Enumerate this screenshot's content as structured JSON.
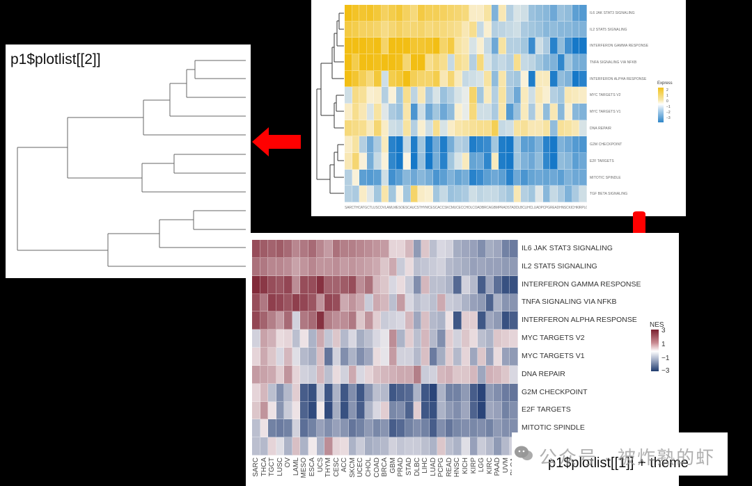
{
  "panels": {
    "dendrogram": {
      "title": "p1$plotlist[[2]]",
      "leaf_count": 12
    },
    "top_heatmap": {
      "legend_title": "Express",
      "legend_ticks": [
        "2",
        "1",
        "0",
        "−1",
        "−2",
        "−3"
      ],
      "col_label_text": "SARCTHCATGCTLUSCOVLAMLMESOESCAUCSTHYMCESCACCSKCMUCECCHOLCOADBRCAGBMPRADSTADDLBCLIHCLUADPCPGREADHNSCKICHKIRPLGGKIRCPAADUVMBLCA"
    },
    "bottom_heatmap": {
      "legend_title": "NES",
      "legend_ticks": [
        "3",
        "1",
        "−1",
        "−3"
      ]
    },
    "caption": "p1$plotlist[[1]] + theme",
    "watermark": "公众号 · 被炸熟的虾"
  },
  "arrows": [
    {
      "direction": "left",
      "color": "#ff0000"
    },
    {
      "direction": "down",
      "color": "#ff0000"
    }
  ],
  "chart_data": {
    "type": "heatmap",
    "title": "",
    "xlabel": "",
    "ylabel": "",
    "legend": {
      "title": "NES",
      "range": [
        -3,
        3
      ],
      "position": "right"
    },
    "rows": [
      "IL6 JAK STAT3 SIGNALING",
      "IL2 STAT5 SIGNALING",
      "INTERFERON GAMMA RESPONSE",
      "TNFA SIGNALING VIA NFKB",
      "INTERFERON ALPHA RESPONSE",
      "MYC TARGETS V2",
      "MYC TARGETS V1",
      "DNA REPAIR",
      "G2M CHECKPOINT",
      "E2F TARGETS",
      "MITOTIC SPINDLE",
      "TGF BETA SIGNALING"
    ],
    "columns": [
      "SARC",
      "THCA",
      "TGCT",
      "LUSC",
      "OV",
      "LAML",
      "MESO",
      "ESCA",
      "UCS",
      "THYM",
      "CESC",
      "ACC",
      "SKCM",
      "UCEC",
      "CHOL",
      "COAD",
      "BRCA",
      "GBM",
      "PRAD",
      "STAD",
      "DLBC",
      "LIHC",
      "LUAD",
      "PCPG",
      "READ",
      "HNSC",
      "KICH",
      "KIRP",
      "LGG",
      "KIRC",
      "PAAD",
      "UVM",
      "BLCA"
    ],
    "values": [
      [
        2.3,
        2.1,
        2.0,
        2.1,
        1.9,
        1.5,
        1.7,
        1.9,
        1.5,
        1.2,
        1.8,
        1.6,
        1.6,
        1.5,
        1.4,
        1.3,
        1.2,
        0.4,
        0.4,
        0.8,
        -1.4,
        0.6,
        -0.8,
        -0.4,
        -0.5,
        -1.1,
        -1.2,
        -1.3,
        -1.6,
        -1.1,
        -1.2,
        -1.8,
        -1.9
      ],
      [
        1.8,
        1.7,
        1.5,
        1.5,
        1.4,
        1.1,
        1.3,
        1.5,
        1.3,
        1.3,
        1.4,
        1.2,
        1.3,
        1.2,
        1.1,
        1.0,
        0.6,
        1.0,
        -0.6,
        0.3,
        -0.8,
        -0.7,
        -0.6,
        -0.5,
        -0.9,
        -1.0,
        -1.1,
        -1.3,
        -1.2,
        -1.3,
        -1.3,
        -1.4,
        -1.4
      ],
      [
        2.8,
        2.6,
        2.3,
        2.2,
        2.4,
        1.4,
        2.3,
        2.3,
        2.7,
        2.0,
        2.0,
        2.1,
        2.3,
        1.4,
        1.8,
        0.8,
        0.6,
        -0.4,
        0.3,
        -0.6,
        -1.6,
        0.8,
        -0.8,
        -0.8,
        -1.0,
        -2.2,
        -0.5,
        -0.9,
        -2.4,
        -1.2,
        -2.1,
        -2.6,
        -2.6
      ],
      [
        2.3,
        1.7,
        2.5,
        2.4,
        2.2,
        2.5,
        2.4,
        2.2,
        1.3,
        2.4,
        2.3,
        1.0,
        1.3,
        1.0,
        -0.6,
        1.0,
        0.8,
        -0.8,
        1.2,
        -0.4,
        -0.8,
        -0.6,
        -0.8,
        1.0,
        -0.6,
        -0.7,
        -1.0,
        -1.3,
        -1.4,
        -2.3,
        -1.0,
        -1.5,
        -1.5
      ],
      [
        2.4,
        2.0,
        1.6,
        1.2,
        1.9,
        -0.5,
        1.7,
        1.9,
        2.7,
        1.6,
        1.4,
        1.4,
        1.7,
        0.6,
        1.3,
        0.5,
        -0.6,
        -0.5,
        -0.4,
        0.8,
        -1.2,
        0.7,
        -0.9,
        -1.0,
        0.2,
        -2.5,
        0.5,
        0.5,
        -2.5,
        -1.2,
        -1.4,
        -2.6,
        -2.4
      ],
      [
        -0.5,
        1.1,
        0.9,
        0.3,
        0.4,
        -0.8,
        0.2,
        -1.0,
        1.0,
        -0.7,
        0.6,
        -0.9,
        -0.4,
        -1.1,
        -0.8,
        -0.4,
        -0.2,
        1.4,
        -1.0,
        0.5,
        -0.8,
        0.8,
        -0.9,
        -1.6,
        0.5,
        -0.5,
        0.6,
        0.3,
        -0.8,
        -1.0,
        0.6,
        0.5,
        0.4
      ],
      [
        0.4,
        1.0,
        0.6,
        -0.4,
        0.8,
        -0.3,
        -0.9,
        -1.1,
        0.7,
        -2.0,
        -0.5,
        -1.6,
        -1.0,
        -1.6,
        -1.2,
        0.3,
        -0.2,
        1.2,
        -0.5,
        -0.5,
        -0.9,
        0.7,
        -1.9,
        -1.1,
        0.5,
        -0.9,
        0.4,
        -1.2,
        0.6,
        -1.3,
        0.3,
        -1.3,
        -1.4
      ],
      [
        1.2,
        1.1,
        1.0,
        0.5,
        1.3,
        0.4,
        -0.5,
        -0.6,
        0.8,
        -0.8,
        0.3,
        -0.5,
        1.0,
        -0.4,
        0.4,
        0.7,
        0.8,
        0.9,
        1.0,
        1.0,
        1.6,
        -0.6,
        -0.5,
        0.8,
        0.9,
        0.6,
        0.6,
        0.8,
        -1.2,
        0.9,
        0.8,
        0.6,
        -0.4
      ],
      [
        0.4,
        0.8,
        -0.8,
        -1.6,
        -0.9,
        0.5,
        -2.4,
        -2.6,
        -0.6,
        -2.5,
        -1.0,
        -2.5,
        -1.6,
        -2.5,
        -1.5,
        -0.8,
        -0.9,
        -2.5,
        -2.3,
        -2.2,
        -1.0,
        -2.5,
        -2.8,
        -1.0,
        -1.8,
        -1.8,
        -1.4,
        -2.4,
        -2.8,
        -1.4,
        -1.6,
        -1.9,
        -2.0
      ],
      [
        0.6,
        1.3,
        0.2,
        -1.5,
        -0.6,
        0.2,
        -2.3,
        -2.7,
        0.1,
        -2.7,
        -1.1,
        -2.6,
        -1.5,
        -2.4,
        -1.0,
        -0.4,
        0.5,
        -1.7,
        -1.6,
        -2.3,
        0.5,
        -2.5,
        -2.6,
        -1.0,
        -1.4,
        -1.6,
        -1.2,
        -2.3,
        -2.8,
        -1.2,
        -1.3,
        -1.8,
        -1.6
      ],
      [
        -0.8,
        0.2,
        -1.8,
        -1.9,
        -1.8,
        -0.5,
        -2.1,
        -1.8,
        -1.3,
        -1.6,
        -1.3,
        -1.5,
        -2.0,
        -1.8,
        -1.4,
        -1.7,
        -1.5,
        -2.4,
        -2.2,
        -1.8,
        -1.6,
        -1.8,
        -2.4,
        -1.6,
        -2.0,
        -1.7,
        -1.6,
        -1.7,
        -1.6,
        -1.8,
        -1.4,
        -1.6,
        -1.6
      ],
      [
        -0.8,
        -0.9,
        0.4,
        -0.3,
        -1.0,
        0.7,
        -1.0,
        0.1,
        -1.0,
        1.4,
        0.4,
        0.3,
        -1.0,
        -0.6,
        -1.1,
        -1.0,
        -0.9,
        -0.5,
        -0.7,
        -0.6,
        -0.6,
        -0.8,
        -1.0,
        0.6,
        -0.8,
        -1.0,
        -0.3,
        -1.3,
        -0.6,
        -0.9,
        -1.4,
        -0.9,
        -0.5
      ]
    ]
  }
}
